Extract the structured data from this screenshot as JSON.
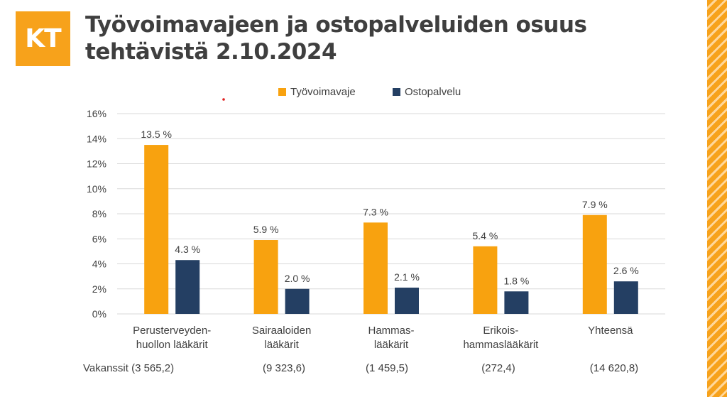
{
  "logo": {
    "text": "KT"
  },
  "title_line1": "Työvoimavajeen ja ostopalveluiden osuus",
  "title_line2": "tehtävistä 2.10.2024",
  "colors": {
    "tyovoimavaje": "#f8a20f",
    "ostopalvelu": "#243f63",
    "grid": "#d9d9d9",
    "brand": "#f7a21b"
  },
  "chart_data": {
    "type": "bar",
    "title": "Työvoimavajeen ja ostopalveluiden osuus tehtävistä 2.10.2024",
    "categories": [
      [
        "Perusterveyden-",
        "huollon lääkärit"
      ],
      [
        "Sairaaloiden",
        "lääkärit"
      ],
      [
        "Hammas-",
        "lääkärit"
      ],
      [
        "Erikois-",
        "hammaslääkärit"
      ],
      [
        "Yhteensä"
      ]
    ],
    "series": [
      {
        "name": "Työvoimavaje",
        "values": [
          13.5,
          5.9,
          7.3,
          5.4,
          7.9
        ],
        "labels": [
          "13.5 %",
          "5.9 %",
          "7.3 %",
          "5.4 %",
          "7.9 %"
        ]
      },
      {
        "name": "Ostopalvelu",
        "values": [
          4.3,
          2.0,
          2.1,
          1.8,
          2.6
        ],
        "labels": [
          "4.3 %",
          "2.0 %",
          "2.1 %",
          "1.8 %",
          "2.6 %"
        ]
      }
    ],
    "yticks": [
      "0%",
      "2%",
      "4%",
      "6%",
      "8%",
      "10%",
      "12%",
      "14%",
      "16%"
    ],
    "ylim": [
      0,
      16
    ],
    "grid": true,
    "legend_position": "top",
    "vacancies": [
      "Vakanssit (3 565,2)",
      "(9 323,6)",
      "(1 459,5)",
      "(272,4)",
      "(14 620,8)"
    ]
  }
}
